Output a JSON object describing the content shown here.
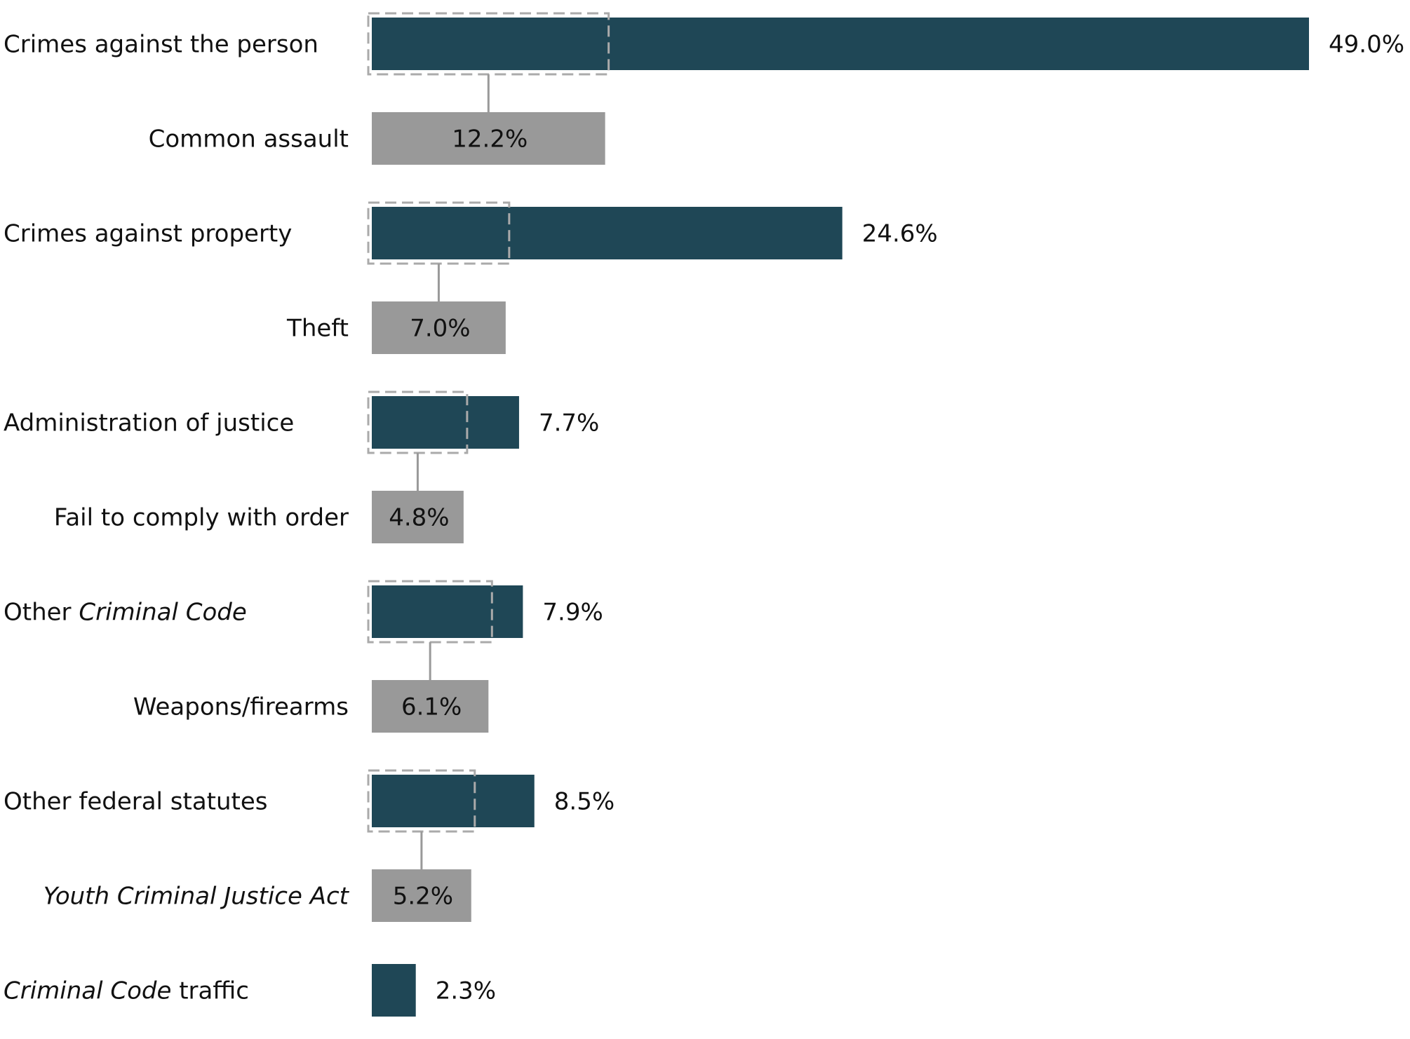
{
  "chart_data": {
    "type": "bar",
    "orientation": "horizontal",
    "unit": "%",
    "xlim": [
      0,
      49.0
    ],
    "colors": {
      "category_bar": "#1f4756",
      "subcategory_bar": "#999999",
      "connector": "#999999"
    },
    "categories": [
      {
        "label_parts": [
          {
            "text": "Crimes against the person",
            "italic": false
          }
        ],
        "value": 49.0,
        "value_label": "49.0%",
        "sub": {
          "label_parts": [
            {
              "text": "Common assault",
              "italic": false
            }
          ],
          "value": 12.2,
          "value_label": "12.2%"
        }
      },
      {
        "label_parts": [
          {
            "text": "Crimes against property",
            "italic": false
          }
        ],
        "value": 24.6,
        "value_label": "24.6%",
        "sub": {
          "label_parts": [
            {
              "text": "Theft",
              "italic": false
            }
          ],
          "value": 7.0,
          "value_label": "7.0%"
        }
      },
      {
        "label_parts": [
          {
            "text": "Administration of justice",
            "italic": false
          }
        ],
        "value": 7.7,
        "value_label": "7.7%",
        "sub": {
          "label_parts": [
            {
              "text": "Fail to comply with order",
              "italic": false
            }
          ],
          "value": 4.8,
          "value_label": "4.8%"
        }
      },
      {
        "label_parts": [
          {
            "text": "Other ",
            "italic": false
          },
          {
            "text": "Criminal Code",
            "italic": true
          }
        ],
        "value": 7.9,
        "value_label": "7.9%",
        "sub": {
          "label_parts": [
            {
              "text": "Weapons/firearms",
              "italic": false
            }
          ],
          "value": 6.1,
          "value_label": "6.1%"
        }
      },
      {
        "label_parts": [
          {
            "text": "Other federal statutes",
            "italic": false
          }
        ],
        "value": 8.5,
        "value_label": "8.5%",
        "sub": {
          "label_parts": [
            {
              "text": "Youth Criminal Justice Act",
              "italic": true
            }
          ],
          "value": 5.2,
          "value_label": "5.2%"
        }
      },
      {
        "label_parts": [
          {
            "text": "Criminal Code",
            "italic": true
          },
          {
            "text": " traffic",
            "italic": false
          }
        ],
        "value": 2.3,
        "value_label": "2.3%",
        "sub": null
      }
    ]
  }
}
